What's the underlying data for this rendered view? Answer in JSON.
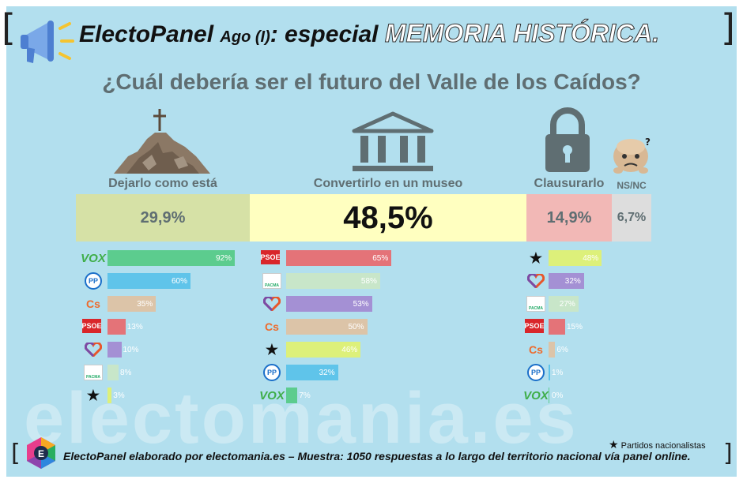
{
  "header": {
    "title_part1": "ElectoPanel",
    "title_part2": "Ago (I)",
    "title_part3": ": especial",
    "title_part4": "MEMORIA HISTÓRICA.",
    "question": "¿Cuál debería ser el futuro del Valle de los Caídos?"
  },
  "answers": [
    {
      "label": "Dejarlo como está",
      "value": "29,9%",
      "color": "#d6e1a6"
    },
    {
      "label": "Convertirlo en un museo",
      "value": "48,5%",
      "color": "#ffffc0"
    },
    {
      "label": "Clausurarlo",
      "value": "14,9%",
      "color": "#f2b8b6"
    },
    {
      "label": "NS/NC",
      "value": "6,7%",
      "color": "#dddddd"
    }
  ],
  "party_colors": {
    "VOX": "#5ccc8e",
    "PP": "#5fc4ea",
    "Cs": "#dcc4a8",
    "PSOE": "#e47378",
    "Podemos": "#a490d4",
    "PACMA": "#c8e6c9",
    "Nacionalistas": "#ddf07a"
  },
  "party_logo_text": {
    "VOX": "VOX",
    "PP": "PP",
    "Cs": "Cs",
    "PSOE": "PSOE",
    "PACMA": "PACMA"
  },
  "chart_data": [
    {
      "type": "bar",
      "title": "Dejarlo como está",
      "categories": [
        "VOX",
        "PP",
        "Cs",
        "PSOE",
        "Podemos",
        "PACMA",
        "Nacionalistas"
      ],
      "values": [
        92,
        60,
        35,
        13,
        10,
        8,
        3
      ],
      "labels": [
        "92%",
        "60%",
        "35%",
        "13%",
        "10%",
        "8%",
        "3%"
      ],
      "xlim": [
        0,
        100
      ]
    },
    {
      "type": "bar",
      "title": "Convertirlo en un museo",
      "categories": [
        "PSOE",
        "PACMA",
        "Podemos",
        "Cs",
        "Nacionalistas",
        "PP",
        "VOX"
      ],
      "values": [
        65,
        58,
        53,
        50,
        46,
        32,
        7
      ],
      "labels": [
        "65%",
        "58%",
        "53%",
        "50%",
        "46%",
        "32%",
        "7%"
      ],
      "xlim": [
        0,
        100
      ]
    },
    {
      "type": "bar",
      "title": "Clausurarlo",
      "categories": [
        "Nacionalistas",
        "Podemos",
        "PACMA",
        "PSOE",
        "Cs",
        "PP",
        "VOX"
      ],
      "values": [
        48,
        32,
        27,
        15,
        6,
        1,
        0
      ],
      "labels": [
        "48%",
        "32%",
        "27%",
        "15%",
        "6%",
        "1%",
        "0%"
      ],
      "xlim": [
        0,
        100
      ]
    }
  ],
  "watermark": "electomania.es",
  "legend_note": "Partidos nacionalistas",
  "footer": "ElectoPanel elaborado por electomania.es – Muestra: 1050 respuestas a lo largo del territorio nacional vía panel online.",
  "icons": {
    "megaphone": "megaphone-icon",
    "mountain": "mountain-cross-icon",
    "museum": "museum-icon",
    "lock": "padlock-icon",
    "nsnc": "confused-face-icon",
    "logo": "electomania-logo-icon"
  }
}
